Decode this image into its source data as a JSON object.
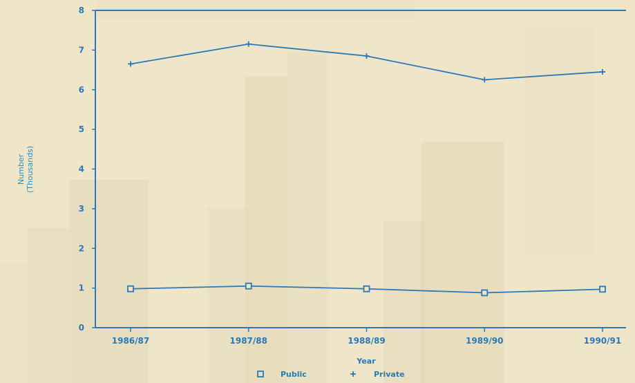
{
  "chart_data": {
    "type": "line",
    "title": "",
    "xlabel": "Year",
    "ylabel": [
      "Number",
      "(Thousands)"
    ],
    "categories": [
      "1986/87",
      "1987/88",
      "1988/89",
      "1989/90",
      "1990/91"
    ],
    "ylim": [
      0,
      8
    ],
    "yticks": [
      "0",
      "1",
      "2",
      "3",
      "4",
      "5",
      "6",
      "7",
      "8"
    ],
    "grid": false,
    "legend_position": "bottom",
    "series": [
      {
        "name": "Public",
        "marker": "square",
        "values": [
          0.98,
          1.05,
          0.98,
          0.88,
          0.97
        ]
      },
      {
        "name": "Private",
        "marker": "plus",
        "values": [
          6.65,
          7.15,
          6.85,
          6.25,
          6.45
        ]
      }
    ],
    "colors": {
      "line": "#2a78b8",
      "text": "#2a78b8",
      "background": "#efe6c9"
    }
  }
}
